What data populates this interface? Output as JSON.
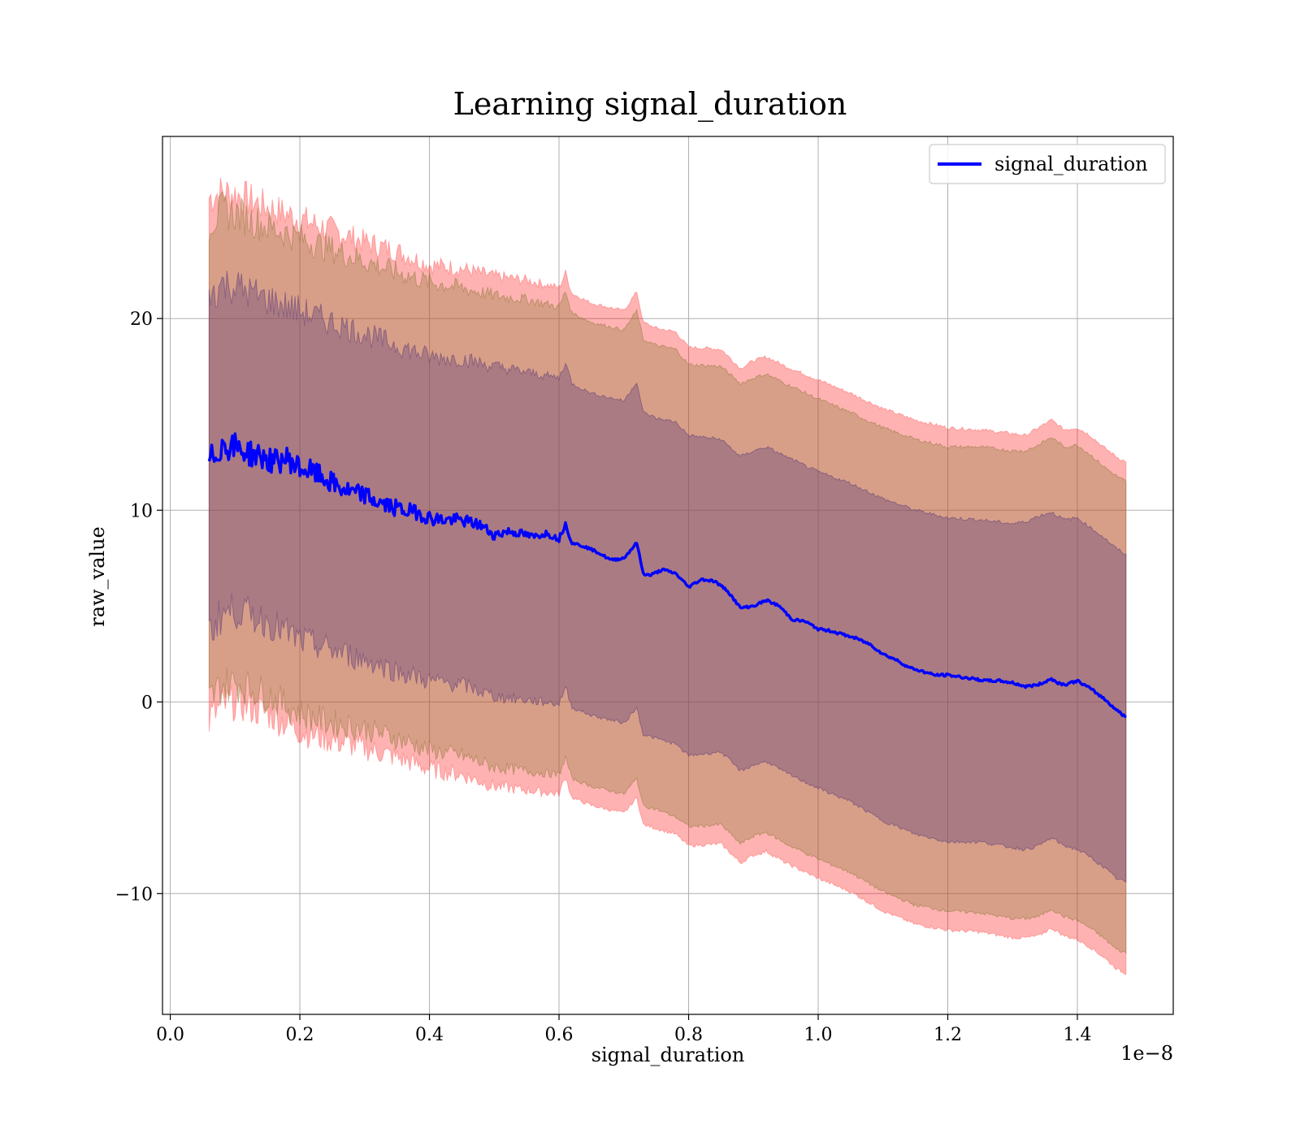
{
  "chart_data": {
    "type": "line",
    "title": "Learning signal_duration",
    "xlabel": "signal_duration",
    "ylabel": "raw_value",
    "x_offset_label": "1e−8",
    "xlim": [
      -0.012,
      1.548
    ],
    "ylim": [
      -16.3,
      29.5
    ],
    "x_ticks": [
      0.0,
      0.2,
      0.4,
      0.6,
      0.8,
      1.0,
      1.2,
      1.4
    ],
    "x_tick_labels": [
      "0.0",
      "0.2",
      "0.4",
      "0.6",
      "0.8",
      "1.0",
      "1.2",
      "1.4"
    ],
    "y_ticks": [
      -10,
      0,
      10,
      20
    ],
    "y_tick_labels": [
      "−10",
      "0",
      "10",
      "20"
    ],
    "grid": true,
    "legend_position": "top-right",
    "legend": [
      "signal_duration"
    ],
    "colors": {
      "line": "#0000ff",
      "outer_band": "#ff0000",
      "outer_band_edge": "#ff6666",
      "middle_band": "#8f7a3a",
      "inner_band": "#5a3a7a"
    },
    "series": [
      {
        "name": "signal_duration",
        "x": [
          0.06,
          0.08,
          0.1,
          0.12,
          0.14,
          0.16,
          0.18,
          0.2,
          0.22,
          0.24,
          0.26,
          0.28,
          0.3,
          0.32,
          0.34,
          0.36,
          0.38,
          0.4,
          0.42,
          0.44,
          0.46,
          0.48,
          0.5,
          0.52,
          0.54,
          0.56,
          0.58,
          0.6,
          0.61,
          0.62,
          0.64,
          0.66,
          0.68,
          0.7,
          0.72,
          0.73,
          0.74,
          0.76,
          0.78,
          0.8,
          0.82,
          0.84,
          0.86,
          0.88,
          0.9,
          0.92,
          0.94,
          0.96,
          0.98,
          1.0,
          1.02,
          1.04,
          1.06,
          1.08,
          1.1,
          1.12,
          1.14,
          1.16,
          1.18,
          1.2,
          1.22,
          1.24,
          1.26,
          1.28,
          1.3,
          1.32,
          1.34,
          1.36,
          1.37,
          1.38,
          1.4,
          1.42,
          1.44,
          1.46,
          1.475
        ],
        "values": [
          12.5,
          13.4,
          13.3,
          13.0,
          12.8,
          12.5,
          12.7,
          12.2,
          12.0,
          11.6,
          11.2,
          10.9,
          10.8,
          10.4,
          10.2,
          10.0,
          9.9,
          9.6,
          9.5,
          9.5,
          9.4,
          9.2,
          8.7,
          8.9,
          8.8,
          8.6,
          8.8,
          8.5,
          9.3,
          8.3,
          8.1,
          7.8,
          7.4,
          7.5,
          8.3,
          6.7,
          6.6,
          6.9,
          6.7,
          6.0,
          6.4,
          6.3,
          5.8,
          4.9,
          5.0,
          5.3,
          5.0,
          4.3,
          4.2,
          3.8,
          3.7,
          3.5,
          3.3,
          3.0,
          2.5,
          2.2,
          1.8,
          1.6,
          1.4,
          1.4,
          1.3,
          1.2,
          1.1,
          1.1,
          1.0,
          0.8,
          0.9,
          1.2,
          1.0,
          0.9,
          1.1,
          0.7,
          0.2,
          -0.4,
          -0.8
        ]
      }
    ],
    "bands": [
      {
        "color": "#ff0000",
        "x": [
          0.06,
          0.08,
          0.1,
          0.15,
          0.2,
          0.25,
          0.3,
          0.35,
          0.4,
          0.45,
          0.5,
          0.55,
          0.6,
          0.61,
          0.62,
          0.65,
          0.7,
          0.72,
          0.73,
          0.75,
          0.78,
          0.8,
          0.85,
          0.88,
          0.9,
          0.92,
          0.95,
          1.0,
          1.05,
          1.1,
          1.15,
          1.2,
          1.25,
          1.3,
          1.32,
          1.34,
          1.36,
          1.38,
          1.4,
          1.42,
          1.44,
          1.46,
          1.475
        ],
        "upper": [
          26.3,
          26.6,
          26.5,
          25.8,
          25.2,
          24.6,
          24.0,
          23.5,
          22.8,
          22.6,
          22.2,
          22.0,
          21.6,
          22.4,
          21.3,
          20.8,
          20.4,
          21.4,
          19.8,
          19.5,
          19.3,
          18.5,
          18.4,
          17.4,
          17.8,
          18.0,
          17.5,
          16.8,
          16.1,
          15.3,
          14.7,
          14.3,
          14.2,
          14.0,
          13.9,
          14.3,
          14.7,
          14.2,
          14.3,
          13.9,
          13.3,
          12.8,
          12.5
        ],
        "lower": [
          -0.9,
          -0.2,
          0.0,
          -0.6,
          -1.5,
          -2.0,
          -2.4,
          -2.9,
          -3.5,
          -3.8,
          -4.4,
          -4.6,
          -4.8,
          -3.9,
          -5.0,
          -5.4,
          -5.8,
          -5.0,
          -6.4,
          -6.6,
          -6.9,
          -7.5,
          -7.4,
          -8.4,
          -8.0,
          -7.8,
          -8.4,
          -9.2,
          -9.9,
          -10.9,
          -11.6,
          -11.9,
          -12.0,
          -12.3,
          -12.3,
          -12.2,
          -11.8,
          -12.2,
          -12.4,
          -12.8,
          -13.3,
          -13.9,
          -14.2
        ]
      },
      {
        "color": "#8f7a3a",
        "x": [
          0.06,
          0.08,
          0.1,
          0.15,
          0.2,
          0.25,
          0.3,
          0.35,
          0.4,
          0.45,
          0.5,
          0.55,
          0.6,
          0.61,
          0.62,
          0.65,
          0.7,
          0.72,
          0.73,
          0.75,
          0.78,
          0.8,
          0.85,
          0.88,
          0.9,
          0.92,
          0.95,
          1.0,
          1.05,
          1.1,
          1.15,
          1.2,
          1.25,
          1.3,
          1.32,
          1.34,
          1.36,
          1.38,
          1.4,
          1.42,
          1.44,
          1.46,
          1.475
        ],
        "upper": [
          25.0,
          25.6,
          25.5,
          24.8,
          24.2,
          23.6,
          23.0,
          22.4,
          21.9,
          21.6,
          21.2,
          21.0,
          20.6,
          21.4,
          20.3,
          19.8,
          19.4,
          20.4,
          18.9,
          18.6,
          18.4,
          17.6,
          17.5,
          16.6,
          16.9,
          17.1,
          16.6,
          15.8,
          15.1,
          14.3,
          13.7,
          13.3,
          13.3,
          13.1,
          13.1,
          13.4,
          13.8,
          13.3,
          13.4,
          12.9,
          12.3,
          11.8,
          11.5
        ],
        "lower": [
          0.1,
          0.9,
          1.0,
          0.4,
          -0.6,
          -1.1,
          -1.4,
          -1.9,
          -2.5,
          -2.8,
          -3.4,
          -3.6,
          -3.8,
          -2.9,
          -4.0,
          -4.4,
          -4.8,
          -4.0,
          -5.4,
          -5.6,
          -6.0,
          -6.5,
          -6.4,
          -7.4,
          -7.0,
          -6.8,
          -7.4,
          -8.2,
          -8.9,
          -9.9,
          -10.6,
          -10.9,
          -11.0,
          -11.3,
          -11.3,
          -11.2,
          -10.8,
          -11.2,
          -11.4,
          -11.8,
          -12.3,
          -12.9,
          -13.1
        ]
      },
      {
        "color": "#5a3a7a",
        "x": [
          0.06,
          0.08,
          0.1,
          0.15,
          0.2,
          0.25,
          0.3,
          0.35,
          0.4,
          0.45,
          0.5,
          0.55,
          0.6,
          0.61,
          0.62,
          0.65,
          0.7,
          0.72,
          0.73,
          0.75,
          0.78,
          0.8,
          0.85,
          0.88,
          0.9,
          0.92,
          0.95,
          1.0,
          1.05,
          1.1,
          1.15,
          1.2,
          1.25,
          1.3,
          1.32,
          1.34,
          1.36,
          1.38,
          1.4,
          1.42,
          1.44,
          1.46,
          1.475
        ],
        "upper": [
          21.2,
          21.8,
          21.7,
          21.0,
          20.4,
          19.8,
          19.2,
          18.6,
          18.0,
          17.9,
          17.5,
          17.2,
          16.9,
          17.7,
          16.6,
          16.1,
          15.7,
          16.7,
          15.1,
          14.8,
          14.6,
          13.9,
          13.7,
          12.8,
          13.1,
          13.3,
          12.8,
          12.0,
          11.4,
          10.6,
          10.0,
          9.6,
          9.5,
          9.3,
          9.4,
          9.7,
          9.9,
          9.5,
          9.6,
          9.1,
          8.6,
          8.0,
          7.7
        ],
        "lower": [
          3.6,
          4.6,
          4.8,
          4.2,
          3.2,
          2.7,
          2.2,
          1.6,
          1.1,
          0.9,
          0.3,
          0.1,
          -0.1,
          0.8,
          -0.3,
          -0.7,
          -1.1,
          -0.3,
          -1.7,
          -1.9,
          -2.2,
          -2.8,
          -2.6,
          -3.6,
          -3.3,
          -3.1,
          -3.7,
          -4.5,
          -5.2,
          -6.2,
          -6.9,
          -7.3,
          -7.3,
          -7.6,
          -7.7,
          -7.5,
          -7.1,
          -7.5,
          -7.7,
          -8.1,
          -8.6,
          -9.2,
          -9.4
        ]
      }
    ]
  }
}
